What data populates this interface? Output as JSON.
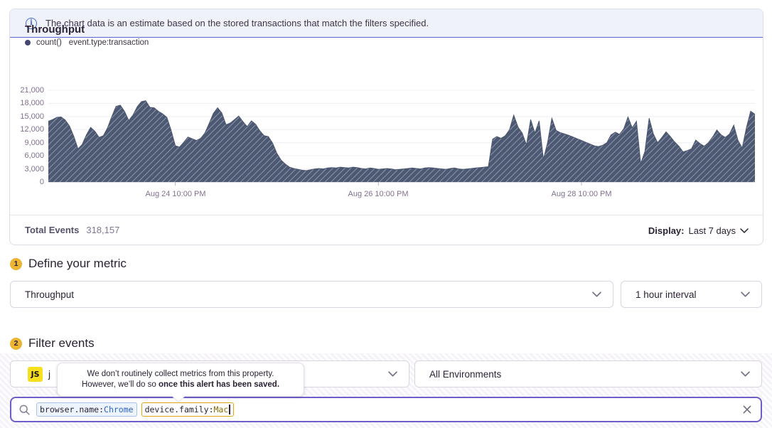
{
  "banner": {
    "icon": "info",
    "text": "The chart data is an estimate based on the stored transactions that match the filters specified."
  },
  "chart": {
    "title": "Throughput",
    "legend_series": "count()",
    "legend_query": "event.type:transaction",
    "y_ticks": [
      "21,000",
      "18,000",
      "15,000",
      "12,000",
      "9,000",
      "6,000",
      "3,000",
      "0"
    ]
  },
  "chart_data": {
    "type": "area",
    "title": "Throughput",
    "xlabel": "",
    "ylabel": "",
    "ylim": [
      0,
      21000
    ],
    "y_tick_interval": 3000,
    "grid": true,
    "legend_position": "top-left",
    "fill_style": "diagonal-hatch",
    "fill_color": "#4D5973",
    "hatch_color": "#97A0B3",
    "x_unit": "hours at 1 hour interval over last 7 days",
    "x_ticks": [
      {
        "label": "Aug 24 10:00 PM",
        "hour": 30
      },
      {
        "label": "Aug 26 10:00 PM",
        "hour": 78
      },
      {
        "label": "Aug 28 10:00 PM",
        "hour": 126
      }
    ],
    "series": [
      {
        "name": "count() event.type:transaction",
        "values": [
          13900,
          14300,
          14800,
          14900,
          14200,
          12800,
          10500,
          7600,
          8600,
          10800,
          12500,
          11600,
          10200,
          10600,
          12400,
          15000,
          17300,
          17600,
          16200,
          14100,
          15300,
          17200,
          18400,
          18600,
          17100,
          17000,
          16200,
          15600,
          14800,
          11900,
          8300,
          8000,
          9100,
          10300,
          9900,
          9500,
          10000,
          11200,
          13400,
          15700,
          17000,
          15800,
          13100,
          13500,
          14300,
          15100,
          13800,
          12700,
          14000,
          13200,
          11700,
          10600,
          10400,
          8900,
          6600,
          5000,
          4100,
          3400,
          3100,
          2900,
          2700,
          2600,
          2800,
          3000,
          3100,
          3000,
          3200,
          3300,
          3200,
          3400,
          3300,
          3200,
          3400,
          3300,
          3100,
          3000,
          3200,
          3100,
          2900,
          3000,
          3100,
          3000,
          2800,
          2900,
          3000,
          3100,
          3200,
          3100,
          3000,
          3200,
          3300,
          3200,
          3100,
          3000,
          2900,
          3100,
          3200,
          3000,
          2900,
          3000,
          3100,
          3200,
          3300,
          3400,
          3500,
          9800,
          10400,
          10000,
          10600,
          12000,
          15300,
          12600,
          11200,
          8500,
          14300,
          11200,
          14000,
          5200,
          9000,
          14600,
          11800,
          11300,
          11000,
          10700,
          10300,
          9900,
          9500,
          9100,
          8700,
          8300,
          8100,
          8400,
          9000,
          10800,
          11400,
          10900,
          12200,
          14900,
          12400,
          13900,
          4200,
          7000,
          14600,
          11000,
          9000,
          10200,
          11500,
          10400,
          9200,
          8200,
          6900,
          7200,
          7600,
          9600,
          8800,
          8200,
          9000,
          10300,
          11900,
          10800,
          10200,
          11000,
          13000,
          9500,
          7800,
          12500,
          16200,
          15500
        ]
      }
    ]
  },
  "summary": {
    "total_label": "Total Events",
    "total_value": "318,157",
    "display_label": "Display:",
    "display_value": "Last 7 days"
  },
  "metric_section": {
    "step": "1",
    "title": "Define your metric",
    "metric_value": "Throughput",
    "interval_value": "1 hour interval"
  },
  "filter_section": {
    "step": "2",
    "title": "Filter events",
    "project_badge": "JS",
    "project_label": "j",
    "environment_value": "All Environments"
  },
  "tooltip": {
    "line1": "We don’t routinely collect metrics from this property.",
    "line2_text": "However, we’ll do so ",
    "line2_bold": "once this alert has been saved."
  },
  "search": {
    "tokens": [
      {
        "key": "browser.name:",
        "value": "Chrome"
      },
      {
        "key": "device.family:",
        "value": "Mac"
      }
    ]
  },
  "colors": {
    "accent_purple": "#6D5EC8",
    "banner_bg": "#F0F2FB",
    "banner_border": "#5468CF",
    "badge_yellow": "#EBB432",
    "js_badge_yellow": "#F7DF1E",
    "token_blue_value": "#2962CC",
    "token_gold_border": "#DFA511",
    "token_gold_value": "#8A6D00",
    "chart_fill": "#4D5973"
  }
}
